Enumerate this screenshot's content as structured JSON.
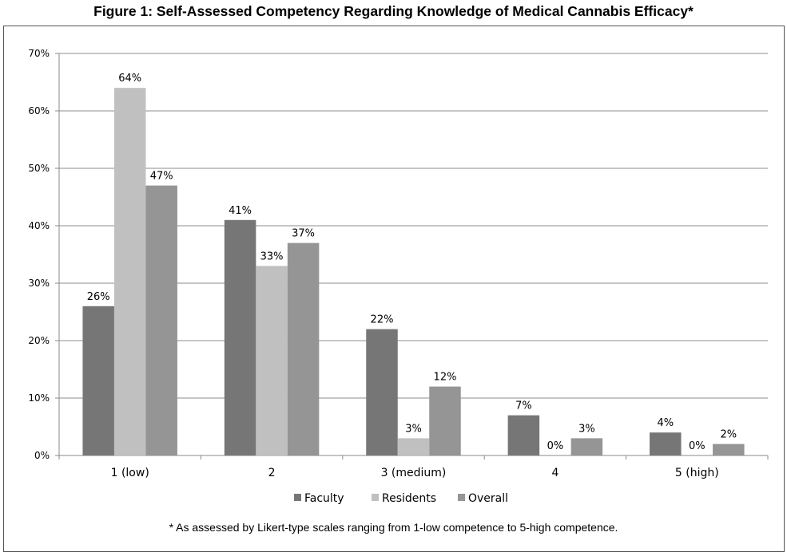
{
  "chart_data": {
    "type": "bar",
    "title": "Figure 1: Self-Assessed Competency Regarding Knowledge of Medical Cannabis Efficacy*",
    "categories": [
      "1 (low)",
      "2",
      "3 (medium)",
      "4",
      "5 (high)"
    ],
    "series": [
      {
        "name": "Faculty",
        "values": [
          26,
          41,
          22,
          7,
          4
        ],
        "color": "#767676"
      },
      {
        "name": "Residents",
        "values": [
          64,
          33,
          3,
          0,
          0
        ],
        "color": "#c0c0c0"
      },
      {
        "name": "Overall",
        "values": [
          47,
          37,
          12,
          3,
          2
        ],
        "color": "#959595"
      }
    ],
    "ylim": [
      0,
      70
    ],
    "yticks": [
      0,
      10,
      20,
      30,
      40,
      50,
      60,
      70
    ],
    "ytick_labels": [
      "0%",
      "10%",
      "20%",
      "30%",
      "40%",
      "50%",
      "60%",
      "70%"
    ],
    "value_suffix": "%",
    "grid": true,
    "legend_position": "bottom",
    "footnote": "* As assessed by Likert-type scales ranging from 1-low competence to 5-high competence."
  }
}
